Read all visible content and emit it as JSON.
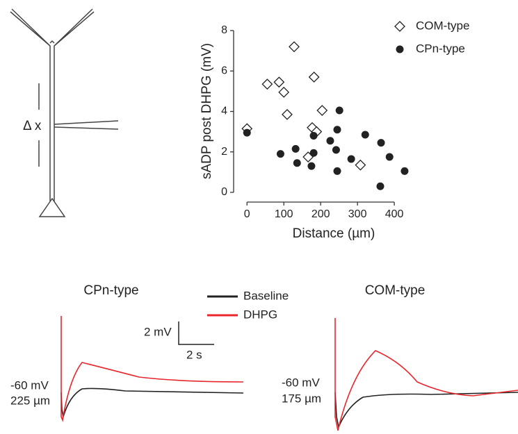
{
  "chart_data": {
    "type": "scatter",
    "y_label": "sADP post DHPG (mV)",
    "x_label": "Distance (µm)",
    "xlim": [
      -25,
      430
    ],
    "ylim": [
      0,
      8
    ],
    "xticks": [
      0,
      100,
      200,
      300,
      400
    ],
    "yticks": [
      0,
      2,
      4,
      6,
      8
    ],
    "legend": "top-right",
    "series": [
      {
        "name": "COM-type",
        "marker": "diamond",
        "color": "#222222",
        "x": [
          0,
          55,
          87,
          100,
          109,
          128,
          182,
          204,
          177,
          189,
          166,
          308
        ],
        "values": [
          3.15,
          5.35,
          5.45,
          4.95,
          3.85,
          7.2,
          5.7,
          4.05,
          3.2,
          3.0,
          1.75,
          1.35
        ]
      },
      {
        "name": "CPn-type",
        "marker": "circle",
        "color": "#222222",
        "x": [
          0,
          91,
          132,
          136,
          175,
          181,
          181,
          226,
          242,
          245,
          251,
          245,
          283,
          321,
          364,
          387,
          362,
          428
        ],
        "values": [
          2.95,
          1.9,
          2.15,
          1.45,
          1.3,
          1.95,
          2.8,
          2.55,
          2.1,
          3.1,
          4.05,
          1.05,
          1.65,
          2.85,
          2.45,
          1.75,
          0.3,
          1.05
        ]
      }
    ]
  },
  "schematic": {
    "label": "Δ x"
  },
  "traces": {
    "left_title": "CPn-type",
    "right_title": "COM-type",
    "legend": [
      {
        "name": "Baseline",
        "color": "#222222"
      },
      {
        "name": "DHPG",
        "color": "#e8262b"
      }
    ],
    "scale_y": "2 mV",
    "scale_x": "2 s",
    "left_potential": "-60 mV",
    "left_distance": "225 µm",
    "right_potential": "-60 mV",
    "right_distance": "175 µm"
  }
}
